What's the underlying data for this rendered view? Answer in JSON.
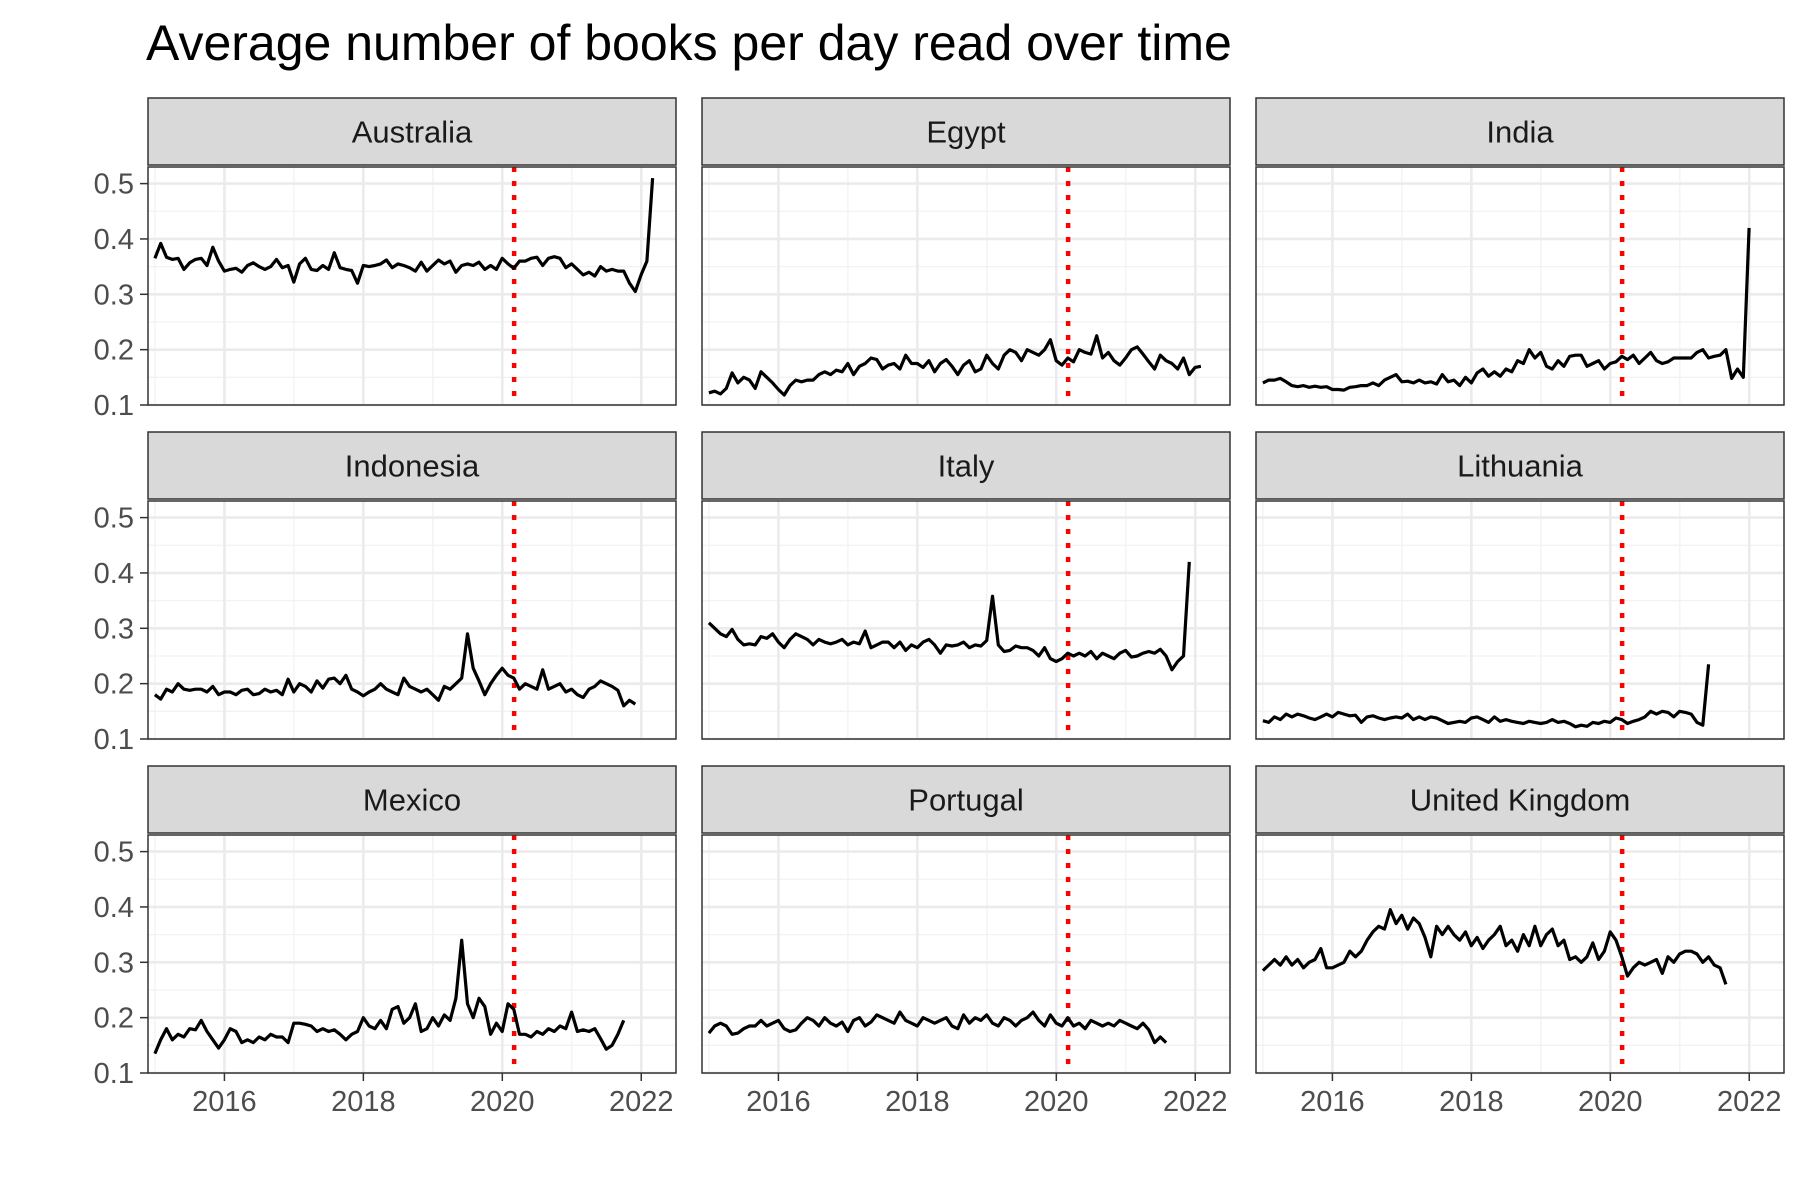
{
  "chart_data": {
    "type": "line",
    "title": "Average number of books per day read over time",
    "xlabel": "",
    "ylabel": "",
    "x_range": [
      2014.9,
      2022.5
    ],
    "x_ticks": [
      "2016",
      "2018",
      "2020",
      "2022"
    ],
    "y_range": [
      0.1,
      0.53
    ],
    "y_ticks": [
      "0.1",
      "0.2",
      "0.3",
      "0.4",
      "0.5"
    ],
    "reference_line": {
      "x": 2020.17,
      "color": "#ff0000",
      "style": "dotted"
    },
    "grid": true,
    "series_color": "#000000",
    "panels": [
      {
        "name": "Australia",
        "start": 2015.0,
        "step": 0.0833,
        "values": [
          0.365,
          0.392,
          0.367,
          0.363,
          0.365,
          0.345,
          0.357,
          0.363,
          0.365,
          0.352,
          0.385,
          0.36,
          0.342,
          0.345,
          0.347,
          0.34,
          0.352,
          0.357,
          0.35,
          0.345,
          0.35,
          0.363,
          0.348,
          0.352,
          0.322,
          0.355,
          0.365,
          0.345,
          0.343,
          0.352,
          0.345,
          0.375,
          0.348,
          0.345,
          0.343,
          0.32,
          0.352,
          0.35,
          0.352,
          0.355,
          0.362,
          0.348,
          0.355,
          0.352,
          0.348,
          0.342,
          0.358,
          0.342,
          0.352,
          0.362,
          0.355,
          0.36,
          0.34,
          0.352,
          0.355,
          0.352,
          0.358,
          0.345,
          0.352,
          0.345,
          0.365,
          0.355,
          0.347,
          0.36,
          0.36,
          0.365,
          0.367,
          0.352,
          0.365,
          0.368,
          0.365,
          0.348,
          0.355,
          0.345,
          0.335,
          0.34,
          0.333,
          0.35,
          0.342,
          0.345,
          0.342,
          0.342,
          0.32,
          0.305,
          0.335,
          0.36,
          0.51
        ]
      },
      {
        "name": "Egypt",
        "start": 2015.0,
        "step": 0.0833,
        "values": [
          0.122,
          0.125,
          0.12,
          0.13,
          0.158,
          0.14,
          0.15,
          0.145,
          0.13,
          0.16,
          0.15,
          0.14,
          0.128,
          0.118,
          0.135,
          0.145,
          0.142,
          0.145,
          0.145,
          0.155,
          0.16,
          0.155,
          0.163,
          0.16,
          0.175,
          0.155,
          0.17,
          0.175,
          0.185,
          0.182,
          0.165,
          0.172,
          0.175,
          0.165,
          0.19,
          0.175,
          0.175,
          0.168,
          0.18,
          0.16,
          0.175,
          0.182,
          0.17,
          0.155,
          0.172,
          0.18,
          0.16,
          0.165,
          0.19,
          0.175,
          0.165,
          0.19,
          0.2,
          0.195,
          0.18,
          0.2,
          0.195,
          0.19,
          0.2,
          0.218,
          0.18,
          0.172,
          0.185,
          0.178,
          0.2,
          0.195,
          0.192,
          0.225,
          0.185,
          0.195,
          0.18,
          0.172,
          0.185,
          0.2,
          0.205,
          0.192,
          0.178,
          0.165,
          0.19,
          0.18,
          0.175,
          0.165,
          0.185,
          0.155,
          0.168,
          0.17
        ]
      },
      {
        "name": "India",
        "start": 2015.0,
        "step": 0.0833,
        "values": [
          0.14,
          0.145,
          0.145,
          0.148,
          0.142,
          0.135,
          0.133,
          0.135,
          0.132,
          0.134,
          0.132,
          0.133,
          0.128,
          0.128,
          0.127,
          0.132,
          0.133,
          0.135,
          0.135,
          0.14,
          0.135,
          0.145,
          0.15,
          0.155,
          0.142,
          0.143,
          0.14,
          0.145,
          0.14,
          0.142,
          0.138,
          0.155,
          0.142,
          0.145,
          0.135,
          0.15,
          0.14,
          0.158,
          0.165,
          0.152,
          0.16,
          0.152,
          0.165,
          0.16,
          0.18,
          0.175,
          0.2,
          0.185,
          0.195,
          0.17,
          0.165,
          0.18,
          0.17,
          0.188,
          0.19,
          0.19,
          0.17,
          0.175,
          0.18,
          0.165,
          0.175,
          0.178,
          0.188,
          0.182,
          0.19,
          0.175,
          0.185,
          0.195,
          0.18,
          0.175,
          0.178,
          0.185,
          0.185,
          0.185,
          0.185,
          0.195,
          0.2,
          0.185,
          0.188,
          0.19,
          0.2,
          0.148,
          0.165,
          0.15,
          0.42
        ]
      },
      {
        "name": "Indonesia",
        "start": 2015.0,
        "step": 0.0833,
        "values": [
          0.18,
          0.172,
          0.19,
          0.185,
          0.2,
          0.19,
          0.188,
          0.19,
          0.19,
          0.185,
          0.195,
          0.18,
          0.185,
          0.185,
          0.18,
          0.188,
          0.19,
          0.18,
          0.182,
          0.19,
          0.185,
          0.188,
          0.18,
          0.208,
          0.185,
          0.2,
          0.195,
          0.185,
          0.205,
          0.192,
          0.208,
          0.21,
          0.2,
          0.215,
          0.19,
          0.185,
          0.178,
          0.185,
          0.19,
          0.2,
          0.19,
          0.185,
          0.18,
          0.21,
          0.195,
          0.19,
          0.185,
          0.19,
          0.18,
          0.17,
          0.195,
          0.19,
          0.2,
          0.21,
          0.29,
          0.228,
          0.205,
          0.18,
          0.2,
          0.215,
          0.228,
          0.215,
          0.21,
          0.19,
          0.2,
          0.195,
          0.19,
          0.225,
          0.19,
          0.195,
          0.2,
          0.185,
          0.19,
          0.18,
          0.175,
          0.19,
          0.195,
          0.205,
          0.2,
          0.195,
          0.188,
          0.16,
          0.17,
          0.163
        ]
      },
      {
        "name": "Italy",
        "start": 2015.0,
        "step": 0.0833,
        "values": [
          0.31,
          0.3,
          0.29,
          0.285,
          0.298,
          0.28,
          0.27,
          0.272,
          0.27,
          0.285,
          0.282,
          0.29,
          0.275,
          0.265,
          0.28,
          0.29,
          0.285,
          0.28,
          0.27,
          0.28,
          0.275,
          0.272,
          0.275,
          0.28,
          0.27,
          0.275,
          0.272,
          0.295,
          0.265,
          0.27,
          0.275,
          0.275,
          0.265,
          0.275,
          0.26,
          0.27,
          0.265,
          0.275,
          0.28,
          0.27,
          0.255,
          0.27,
          0.268,
          0.27,
          0.275,
          0.265,
          0.27,
          0.268,
          0.278,
          0.358,
          0.27,
          0.258,
          0.26,
          0.268,
          0.265,
          0.265,
          0.26,
          0.25,
          0.265,
          0.245,
          0.24,
          0.245,
          0.255,
          0.25,
          0.255,
          0.25,
          0.258,
          0.245,
          0.255,
          0.25,
          0.245,
          0.255,
          0.26,
          0.248,
          0.25,
          0.255,
          0.258,
          0.255,
          0.262,
          0.25,
          0.225,
          0.24,
          0.25,
          0.42
        ]
      },
      {
        "name": "Lithuania",
        "start": 2015.0,
        "step": 0.0833,
        "values": [
          0.133,
          0.13,
          0.14,
          0.135,
          0.145,
          0.14,
          0.145,
          0.142,
          0.138,
          0.135,
          0.14,
          0.145,
          0.14,
          0.148,
          0.145,
          0.142,
          0.143,
          0.13,
          0.14,
          0.142,
          0.138,
          0.135,
          0.138,
          0.14,
          0.138,
          0.145,
          0.135,
          0.14,
          0.135,
          0.14,
          0.138,
          0.133,
          0.128,
          0.13,
          0.132,
          0.13,
          0.138,
          0.14,
          0.135,
          0.13,
          0.14,
          0.132,
          0.135,
          0.132,
          0.13,
          0.128,
          0.132,
          0.13,
          0.128,
          0.13,
          0.135,
          0.13,
          0.132,
          0.128,
          0.122,
          0.125,
          0.123,
          0.13,
          0.128,
          0.132,
          0.13,
          0.138,
          0.135,
          0.128,
          0.132,
          0.135,
          0.14,
          0.15,
          0.145,
          0.15,
          0.148,
          0.14,
          0.15,
          0.148,
          0.145,
          0.13,
          0.125,
          0.235
        ]
      },
      {
        "name": "Mexico",
        "start": 2015.0,
        "step": 0.0833,
        "values": [
          0.135,
          0.16,
          0.18,
          0.16,
          0.17,
          0.165,
          0.18,
          0.178,
          0.195,
          0.175,
          0.16,
          0.145,
          0.16,
          0.18,
          0.175,
          0.155,
          0.16,
          0.155,
          0.165,
          0.16,
          0.17,
          0.165,
          0.165,
          0.155,
          0.19,
          0.19,
          0.188,
          0.185,
          0.175,
          0.18,
          0.175,
          0.178,
          0.17,
          0.16,
          0.17,
          0.175,
          0.2,
          0.185,
          0.18,
          0.195,
          0.18,
          0.215,
          0.22,
          0.19,
          0.2,
          0.225,
          0.175,
          0.18,
          0.2,
          0.185,
          0.205,
          0.195,
          0.235,
          0.34,
          0.225,
          0.2,
          0.235,
          0.22,
          0.17,
          0.19,
          0.175,
          0.225,
          0.215,
          0.17,
          0.17,
          0.165,
          0.175,
          0.17,
          0.18,
          0.175,
          0.185,
          0.18,
          0.21,
          0.175,
          0.178,
          0.175,
          0.18,
          0.162,
          0.143,
          0.15,
          0.17,
          0.195
        ]
      },
      {
        "name": "Portugal",
        "start": 2015.0,
        "step": 0.0833,
        "values": [
          0.172,
          0.185,
          0.19,
          0.185,
          0.17,
          0.172,
          0.18,
          0.185,
          0.185,
          0.195,
          0.185,
          0.19,
          0.195,
          0.18,
          0.175,
          0.178,
          0.19,
          0.2,
          0.195,
          0.185,
          0.2,
          0.19,
          0.185,
          0.192,
          0.175,
          0.195,
          0.2,
          0.185,
          0.192,
          0.205,
          0.2,
          0.195,
          0.19,
          0.21,
          0.195,
          0.19,
          0.185,
          0.2,
          0.195,
          0.19,
          0.195,
          0.2,
          0.185,
          0.18,
          0.205,
          0.19,
          0.2,
          0.195,
          0.205,
          0.19,
          0.185,
          0.2,
          0.195,
          0.185,
          0.195,
          0.2,
          0.21,
          0.195,
          0.185,
          0.205,
          0.19,
          0.185,
          0.2,
          0.185,
          0.19,
          0.18,
          0.195,
          0.19,
          0.185,
          0.19,
          0.185,
          0.195,
          0.19,
          0.185,
          0.18,
          0.19,
          0.178,
          0.155,
          0.165,
          0.155
        ]
      },
      {
        "name": "United Kingdom",
        "start": 2015.0,
        "step": 0.0833,
        "values": [
          0.285,
          0.295,
          0.305,
          0.295,
          0.31,
          0.295,
          0.305,
          0.29,
          0.3,
          0.305,
          0.325,
          0.29,
          0.29,
          0.295,
          0.3,
          0.32,
          0.31,
          0.32,
          0.34,
          0.355,
          0.365,
          0.36,
          0.395,
          0.37,
          0.385,
          0.36,
          0.38,
          0.37,
          0.345,
          0.31,
          0.365,
          0.35,
          0.365,
          0.35,
          0.34,
          0.355,
          0.33,
          0.345,
          0.325,
          0.34,
          0.35,
          0.365,
          0.33,
          0.34,
          0.32,
          0.35,
          0.33,
          0.365,
          0.33,
          0.35,
          0.36,
          0.33,
          0.34,
          0.305,
          0.31,
          0.3,
          0.31,
          0.335,
          0.305,
          0.32,
          0.355,
          0.34,
          0.31,
          0.275,
          0.29,
          0.3,
          0.295,
          0.3,
          0.305,
          0.28,
          0.31,
          0.3,
          0.315,
          0.32,
          0.32,
          0.315,
          0.3,
          0.31,
          0.295,
          0.29,
          0.26
        ]
      }
    ]
  }
}
